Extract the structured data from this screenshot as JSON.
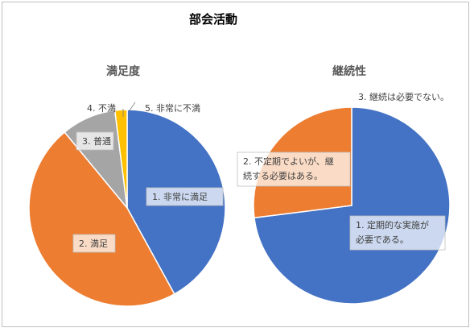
{
  "page_title": "部会活動",
  "chart_data": [
    {
      "type": "pie",
      "title": "満足度",
      "slices": [
        {
          "label": "1. 非常に満足",
          "value": 42.0,
          "color": "#4472C4"
        },
        {
          "label": "2. 満足",
          "value": 47.0,
          "color": "#ED7D31"
        },
        {
          "label": "3. 普通",
          "value": 9.0,
          "color": "#A5A5A5"
        },
        {
          "label": "4. 不満",
          "value": 0.0,
          "color": "#7F7F7F"
        },
        {
          "label": "5. 非常に不満",
          "value": 2.0,
          "color": "#FFC000"
        }
      ]
    },
    {
      "type": "pie",
      "title": "継続性",
      "slices": [
        {
          "label": "1. 定期的な実施が必要である。",
          "value": 73.0,
          "color": "#4472C4"
        },
        {
          "label": "2. 不定期でよいが、継続する必要はある。",
          "value": 27.0,
          "color": "#ED7D31"
        },
        {
          "label": "3. 継続は必要でない。",
          "value": 0.0,
          "color": "#A5A5A5"
        }
      ]
    }
  ]
}
